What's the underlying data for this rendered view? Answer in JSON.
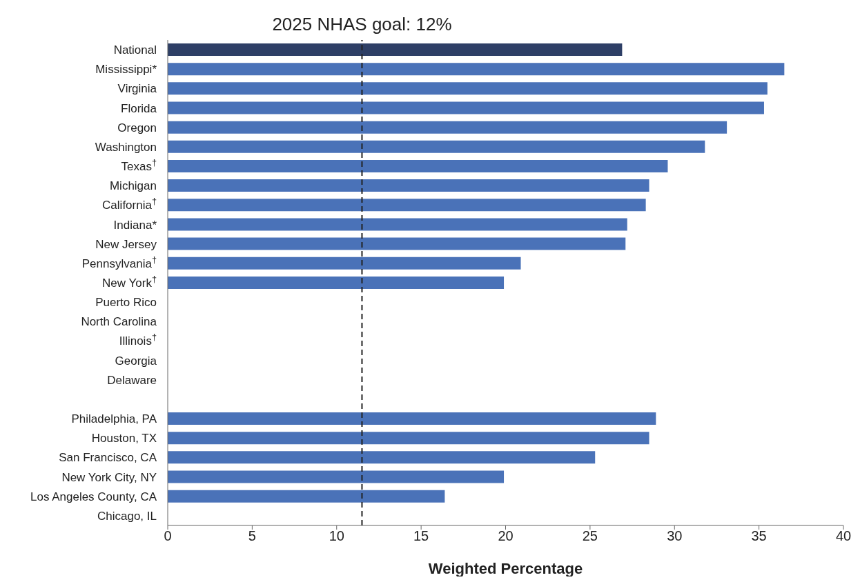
{
  "chart_data": {
    "type": "bar",
    "orientation": "horizontal",
    "xlabel": "Weighted Percentage",
    "categories": [
      "National",
      "Mississippi*",
      "Virginia",
      "Florida",
      "Oregon",
      "Washington",
      "Texas$^{†}$",
      "Michigan",
      "California$^{†}$",
      "Indiana*",
      "New Jersey",
      "Pennsylvania$^{†}$",
      "New York$^{†}$",
      "Puerto Rico",
      "North Carolina",
      "Illinois$^{†}$",
      "Georgia",
      "Delaware",
      null,
      "Philadelphia, PA",
      "Houston, TX",
      "San Francisco, CA",
      "New York City, NY",
      "Los Angeles County, CA",
      "Chicago, IL"
    ],
    "values": [
      26.9,
      36.5,
      35.5,
      35.3,
      33.1,
      31.8,
      29.6,
      28.5,
      28.3,
      27.2,
      27.1,
      20.9,
      19.9,
      null,
      null,
      null,
      null,
      null,
      null,
      28.9,
      28.5,
      25.3,
      19.9,
      16.4,
      null
    ],
    "colors": [
      "#2e3f66",
      "#4a72b8",
      "#4a72b8",
      "#4a72b8",
      "#4a72b8",
      "#4a72b8",
      "#4a72b8",
      "#4a72b8",
      "#4a72b8",
      "#4a72b8",
      "#4a72b8",
      "#4a72b8",
      "#4a72b8",
      "#4a72b8",
      "#4a72b8",
      "#4a72b8",
      "#4a72b8",
      "#4a72b8",
      "#4a72b8",
      "#4a72b8",
      "#4a72b8",
      "#4a72b8",
      "#4a72b8",
      "#4a72b8",
      "#4a72b8"
    ],
    "xlim": [
      0,
      40
    ],
    "xticks": [
      0,
      5,
      10,
      15,
      20,
      25,
      30,
      35,
      40
    ],
    "ref_lines": [
      {
        "axis": "x",
        "value": 11.5,
        "label": "2025 NHAS goal: 12%",
        "color": "#222222",
        "line_style": "dashed"
      }
    ],
    "grid": false,
    "legend": false
  }
}
